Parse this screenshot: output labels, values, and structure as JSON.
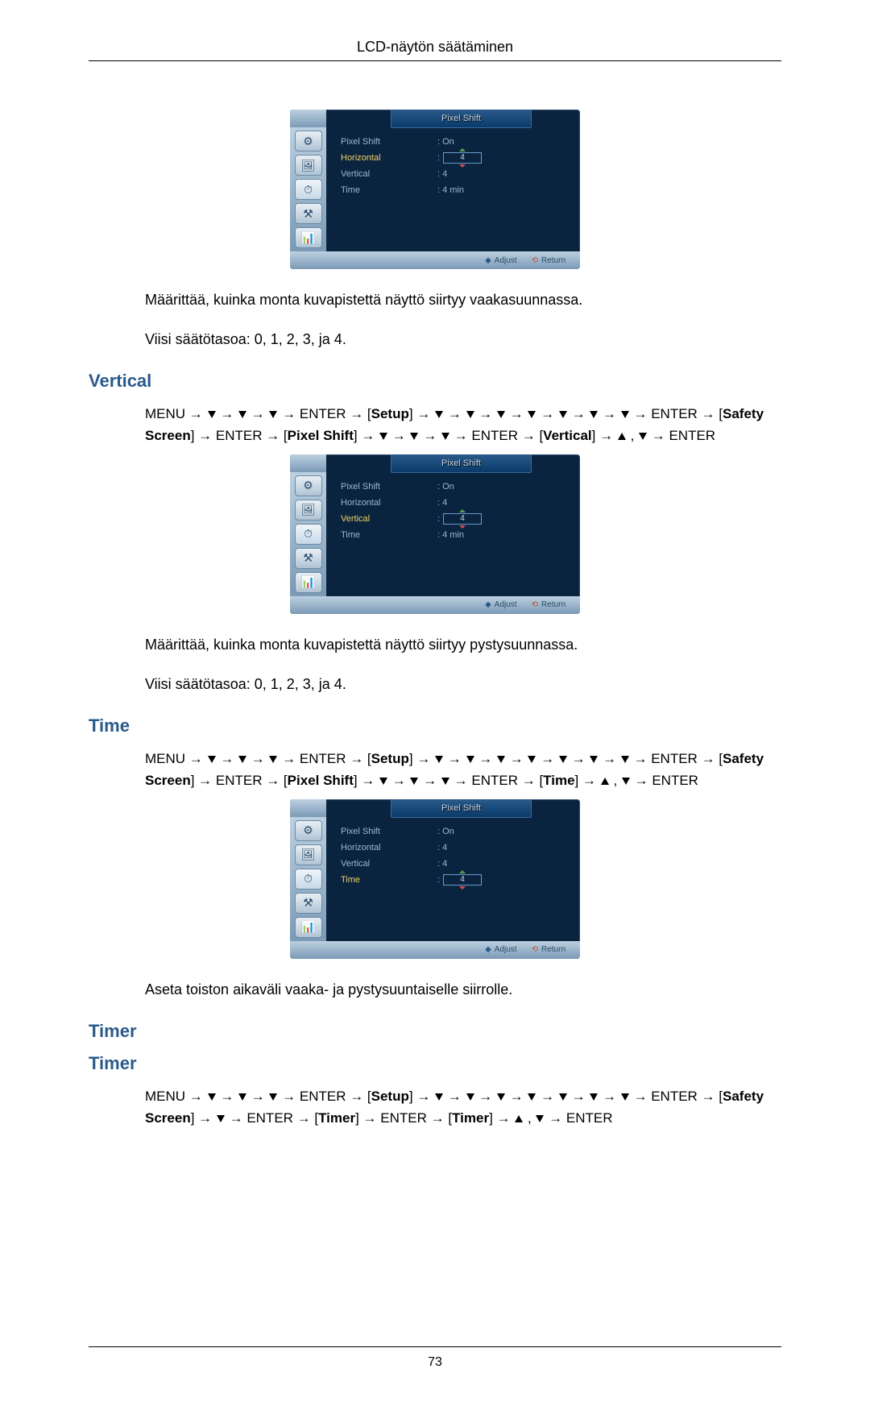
{
  "header": {
    "title": "LCD-näytön säätäminen"
  },
  "osd_menus": {
    "title": "Pixel Shift",
    "footer": {
      "adjust": "Adjust",
      "return": "Return"
    },
    "icons": [
      "⚙",
      "🖼",
      "⏱",
      "⚒",
      "📊"
    ],
    "menu1": {
      "highlight_index": 1,
      "rows": [
        {
          "label": "Pixel Shift",
          "value_text": ": On",
          "spinner": false
        },
        {
          "label": "Horizontal",
          "value_text": ":",
          "spinner": true,
          "spinner_val": "4"
        },
        {
          "label": "Vertical",
          "value_text": ": 4",
          "spinner": false
        },
        {
          "label": "Time",
          "value_text": ": 4 min",
          "spinner": false
        }
      ]
    },
    "menu2": {
      "highlight_index": 2,
      "rows": [
        {
          "label": "Pixel Shift",
          "value_text": ": On",
          "spinner": false
        },
        {
          "label": "Horizontal",
          "value_text": ": 4",
          "spinner": false
        },
        {
          "label": "Vertical",
          "value_text": ":",
          "spinner": true,
          "spinner_val": "4"
        },
        {
          "label": "Time",
          "value_text": ": 4 min",
          "spinner": false
        }
      ]
    },
    "menu3": {
      "highlight_index": 3,
      "rows": [
        {
          "label": "Pixel Shift",
          "value_text": ": On",
          "spinner": false
        },
        {
          "label": "Horizontal",
          "value_text": ": 4",
          "spinner": false
        },
        {
          "label": "Vertical",
          "value_text": ": 4",
          "spinner": false
        },
        {
          "label": "Time",
          "value_text": ":",
          "spinner": true,
          "spinner_val": "4"
        }
      ]
    }
  },
  "sections": {
    "horiz_desc1": "Määrittää, kuinka monta kuvapistettä näyttö siirtyy vaakasuunnassa.",
    "horiz_desc2": "Viisi säätötasoa: 0, 1, 2, 3, ja 4.",
    "vertical_heading": "Vertical",
    "vert_desc1": "Määrittää, kuinka monta kuvapistettä näyttö siirtyy pystysuunnassa.",
    "vert_desc2": "Viisi säätötasoa: 0, 1, 2, 3, ja 4.",
    "time_heading": "Time",
    "time_desc1": "Aseta toiston aikaväli vaaka- ja pystysuuntaiselle siirrolle.",
    "timer_heading1": "Timer",
    "timer_heading2": "Timer"
  },
  "nav": {
    "menu": "MENU",
    "enter": "ENTER",
    "setup": "Setup",
    "safety": "Safety Screen",
    "pixel_shift": "Pixel Shift",
    "vertical": "Vertical",
    "time": "Time",
    "timer": "Timer"
  },
  "footer": {
    "page_number": "73"
  },
  "colors": {
    "heading": "#2a5a8a",
    "osd_bg": "#0a2440",
    "osd_text": "#9ab8d0",
    "osd_hl": "#f0d060"
  }
}
